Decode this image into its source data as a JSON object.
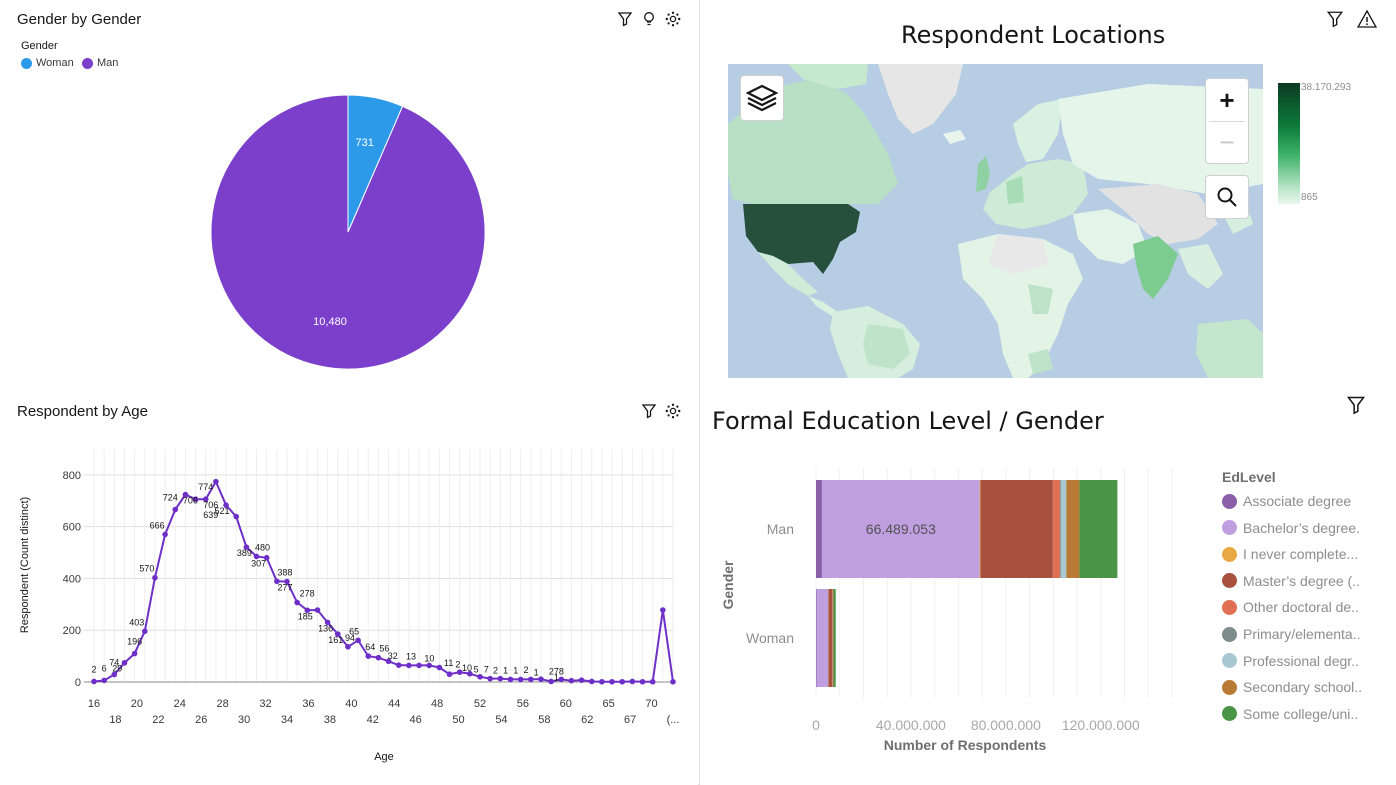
{
  "gender_panel": {
    "title": "Gender by Gender",
    "legend_title": "Gender",
    "legend": [
      {
        "label": "Woman",
        "color": "#2c9ae9"
      },
      {
        "label": "Man",
        "color": "#7b3fcc"
      }
    ]
  },
  "map_panel": {
    "title": "Respondent Locations",
    "scale_max": "38.170.293",
    "scale_min": "865",
    "zoom_in": "+",
    "zoom_out": "−"
  },
  "age_panel": {
    "title": "Respondent by Age",
    "ylabel": "Respondent (Count distinct)",
    "xlabel": "Age"
  },
  "edu_panel": {
    "title": "Formal Education Level / Gender",
    "legend_title": "EdLevel",
    "ylabel": "Gender",
    "xlabel": "Number of Respondents",
    "legend": [
      {
        "label": "Associate degree",
        "color": "#8a5fa8"
      },
      {
        "label": "Bachelor’s degree.",
        "color": "#bf9fe0"
      },
      {
        "label": "I never complete...",
        "color": "#e8a844"
      },
      {
        "label": "Master’s degree (..",
        "color": "#a8513f"
      },
      {
        "label": "Other doctoral de..",
        "color": "#e07054"
      },
      {
        "label": "Primary/elementa..",
        "color": "#7e8c8c"
      },
      {
        "label": "Professional degr..",
        "color": "#a8c8d4"
      },
      {
        "label": "Secondary school..",
        "color": "#b87a34"
      },
      {
        "label": "Some college/uni..",
        "color": "#4a9448"
      }
    ]
  },
  "chart_data": [
    {
      "type": "pie",
      "categories": [
        "Woman",
        "Man"
      ],
      "values": [
        731,
        10480
      ],
      "labels": [
        "731",
        "10,480"
      ],
      "colors": [
        "#2c9ae9",
        "#7b3fcc"
      ]
    },
    {
      "type": "line",
      "x": [
        16,
        17,
        18,
        19,
        20,
        21,
        22,
        23,
        24,
        25,
        26,
        27,
        28,
        29,
        30,
        31,
        32,
        33,
        34,
        35,
        36,
        37,
        38,
        39,
        40,
        41,
        42,
        43,
        44,
        45,
        46,
        47,
        48,
        49,
        50,
        51,
        52,
        53,
        54,
        55,
        56,
        57,
        58,
        59,
        60,
        61,
        62,
        63,
        64,
        65,
        66,
        67,
        68,
        69,
        70,
        71,
        72,
        73
      ],
      "values": [
        2,
        6,
        29,
        74,
        110,
        196,
        403,
        570,
        666,
        724,
        706,
        706,
        774,
        683,
        639,
        521,
        485,
        480,
        389,
        388,
        307,
        277,
        278,
        230,
        185,
        136,
        161,
        100,
        94,
        80,
        65,
        64,
        64,
        64,
        56,
        30,
        38,
        32,
        20,
        13,
        13,
        10,
        10,
        10,
        11,
        2,
        10,
        5,
        7,
        2,
        1,
        1,
        1,
        2,
        1,
        1,
        278,
        1
      ],
      "labels": [
        {
          "x": 16,
          "text": "2"
        },
        {
          "x": 17,
          "text": "6"
        },
        {
          "x": 18,
          "text": "29"
        },
        {
          "x": 18,
          "text": "74"
        },
        {
          "x": 20,
          "text": "196"
        },
        {
          "x": 21,
          "text": "403"
        },
        {
          "x": 22,
          "text": "570"
        },
        {
          "x": 23,
          "text": "666"
        },
        {
          "x": 24,
          "text": "724"
        },
        {
          "x": 25,
          "text": "706"
        },
        {
          "x": 27,
          "text": "774"
        },
        {
          "x": 27,
          "text": "706"
        },
        {
          "x": 27,
          "text": "639"
        },
        {
          "x": 29,
          "text": "521"
        },
        {
          "x": 31,
          "text": "389"
        },
        {
          "x": 32,
          "text": "480"
        },
        {
          "x": 33,
          "text": "307"
        },
        {
          "x": 34,
          "text": "388"
        },
        {
          "x": 35,
          "text": "277"
        },
        {
          "x": 36,
          "text": "278"
        },
        {
          "x": 37,
          "text": "185"
        },
        {
          "x": 39,
          "text": "136"
        },
        {
          "x": 40,
          "text": "161"
        },
        {
          "x": 41,
          "text": "94"
        },
        {
          "x": 42,
          "text": "65"
        },
        {
          "x": 43,
          "text": "64"
        },
        {
          "x": 44,
          "text": "56"
        },
        {
          "x": 46,
          "text": "32"
        },
        {
          "x": 48,
          "text": "13"
        },
        {
          "x": 50,
          "text": "10"
        },
        {
          "x": 52,
          "text": "11"
        },
        {
          "x": 53,
          "text": "2"
        },
        {
          "x": 54,
          "text": "10"
        },
        {
          "x": 55,
          "text": "5"
        },
        {
          "x": 56,
          "text": "7"
        },
        {
          "x": 57,
          "text": "2"
        },
        {
          "x": 58,
          "text": "1"
        },
        {
          "x": 59,
          "text": "1"
        },
        {
          "x": 60,
          "text": "2"
        },
        {
          "x": 61,
          "text": "1"
        },
        {
          "x": 63,
          "text": "278"
        },
        {
          "x": 63,
          "text": "1"
        }
      ],
      "xticks_top": [
        "16",
        "20",
        "24",
        "28",
        "32",
        "36",
        "40",
        "44",
        "48",
        "52",
        "56",
        "60",
        "65",
        "70"
      ],
      "xticks_bottom": [
        "18",
        "22",
        "26",
        "30",
        "34",
        "38",
        "42",
        "46",
        "50",
        "54",
        "58",
        "62",
        "67",
        "(..."
      ],
      "yticks": [
        "0",
        "200",
        "400",
        "600",
        "800"
      ],
      "ylim": [
        0,
        900
      ],
      "color": "#6e2fc8"
    },
    {
      "type": "bar",
      "orientation": "horizontal",
      "stacked": true,
      "categories": [
        "Man",
        "Woman"
      ],
      "xticks": [
        "0",
        "40.000.000",
        "80.000.000",
        "120.000.000"
      ],
      "xlim": [
        0,
        150000000
      ],
      "series": [
        {
          "name": "Associate degree",
          "values": [
            2500000,
            200000
          ]
        },
        {
          "name": "Bachelor’s degree.",
          "values": [
            66489053,
            5000000
          ]
        },
        {
          "name": "I never complete...",
          "values": [
            300000,
            50000
          ]
        },
        {
          "name": "Master’s degree (..",
          "values": [
            30500000,
            1500000
          ]
        },
        {
          "name": "Other doctoral de..",
          "values": [
            3000000,
            200000
          ]
        },
        {
          "name": "Primary/elementa..",
          "values": [
            400000,
            50000
          ]
        },
        {
          "name": "Professional degr..",
          "values": [
            2300000,
            100000
          ]
        },
        {
          "name": "Secondary school..",
          "values": [
            5500000,
            300000
          ]
        },
        {
          "name": "Some college/uni..",
          "values": [
            16000000,
            900000
          ]
        }
      ],
      "data_label": "66.489.053"
    }
  ]
}
